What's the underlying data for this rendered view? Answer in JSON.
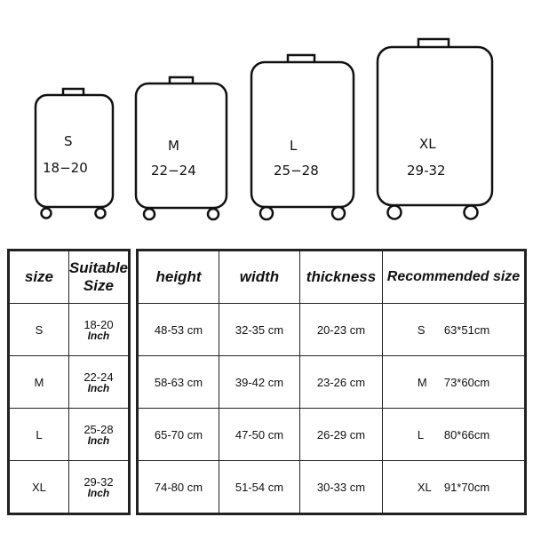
{
  "suitcases": [
    {
      "size": "S",
      "range": "18−20"
    },
    {
      "size": "M",
      "range": "22−24"
    },
    {
      "size": "L",
      "range": "25−28"
    },
    {
      "size": "XL",
      "range": "29-32"
    }
  ],
  "size_table": {
    "headers": [
      "size",
      "Suitable",
      "Size"
    ],
    "unit": "Inch",
    "rows": [
      {
        "size": "S",
        "range": "18-20"
      },
      {
        "size": "M",
        "range": "22-24"
      },
      {
        "size": "L",
        "range": "25-28"
      },
      {
        "size": "XL",
        "range": "29-32"
      }
    ]
  },
  "dim_table": {
    "headers": [
      "height",
      "width",
      "thickness",
      "Recommended size"
    ],
    "rows": [
      {
        "height": "48-53 cm",
        "width": "32-35 cm",
        "thickness": "20-23 cm",
        "rec_size": "S",
        "rec_dim": "63*51cm"
      },
      {
        "height": "58-63 cm",
        "width": "39-42 cm",
        "thickness": "23-26 cm",
        "rec_size": "M",
        "rec_dim": "73*60cm"
      },
      {
        "height": "65-70 cm",
        "width": "47-50 cm",
        "thickness": "26-29 cm",
        "rec_size": "L",
        "rec_dim": "80*66cm"
      },
      {
        "height": "74-80 cm",
        "width": "51-54 cm",
        "thickness": "30-33 cm",
        "rec_size": "XL",
        "rec_dim": "91*70cm"
      }
    ]
  }
}
